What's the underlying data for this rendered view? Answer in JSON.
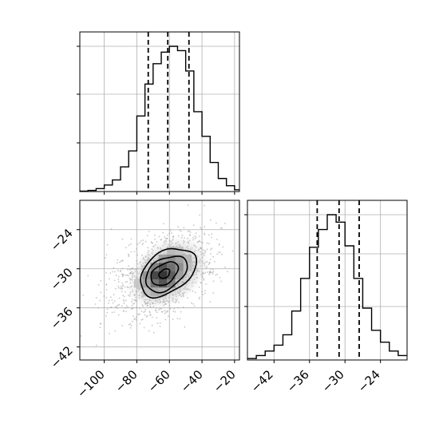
{
  "chart_data": {
    "type": "corner",
    "panels": [
      {
        "id": "marginal-x",
        "type": "histogram",
        "axis_range": [
          -115,
          -17
        ],
        "bin_edges": [
          -115,
          -110,
          -105,
          -100,
          -95,
          -90,
          -85,
          -80,
          -75,
          -70,
          -65,
          -60,
          -55,
          -50,
          -45,
          -40,
          -35,
          -30,
          -25,
          -20,
          -17
        ],
        "counts": [
          0.003,
          0.008,
          0.02,
          0.045,
          0.08,
          0.17,
          0.28,
          0.52,
          0.74,
          0.88,
          0.96,
          1.0,
          0.97,
          0.83,
          0.55,
          0.38,
          0.2,
          0.09,
          0.04,
          0.012
        ],
        "quantile_lines": [
          -73,
          -61,
          -48
        ],
        "grid": true
      },
      {
        "id": "joint",
        "type": "2d-histogram-contour",
        "x_range": [
          -115,
          -17
        ],
        "y_range": [
          -44,
          -19.5
        ],
        "xticks": [
          -100,
          -80,
          -60,
          -40,
          -20
        ],
        "yticks": [
          -24,
          -30,
          -36,
          -42
        ],
        "peak": {
          "x": -64,
          "y": -31
        },
        "contour_levels": 4,
        "grid": true
      },
      {
        "id": "marginal-y",
        "type": "histogram",
        "axis_range": [
          -46.5,
          -19.5
        ],
        "bin_edges": [
          -46.5,
          -45,
          -43.5,
          -42,
          -40.5,
          -39,
          -37.5,
          -36,
          -34.5,
          -33,
          -31.5,
          -30,
          -28.5,
          -27,
          -25.5,
          -24,
          -22.5,
          -21,
          -19.5
        ],
        "counts": [
          0.01,
          0.03,
          0.06,
          0.1,
          0.17,
          0.33,
          0.55,
          0.76,
          0.88,
          0.98,
          0.93,
          0.77,
          0.55,
          0.35,
          0.2,
          0.12,
          0.06,
          0.03
        ],
        "quantile_lines": [
          -34.7,
          -31.0,
          -27.6
        ],
        "xticks": [
          -42,
          -36,
          -30,
          -24
        ],
        "grid": true
      }
    ]
  },
  "tick_labels": {
    "joint_x": [
      "−100",
      "−80",
      "−60",
      "−40",
      "−20"
    ],
    "joint_y": [
      "−24",
      "−30",
      "−36",
      "−42"
    ],
    "marginal_y_x": [
      "−42",
      "−36",
      "−30",
      "−24"
    ]
  }
}
